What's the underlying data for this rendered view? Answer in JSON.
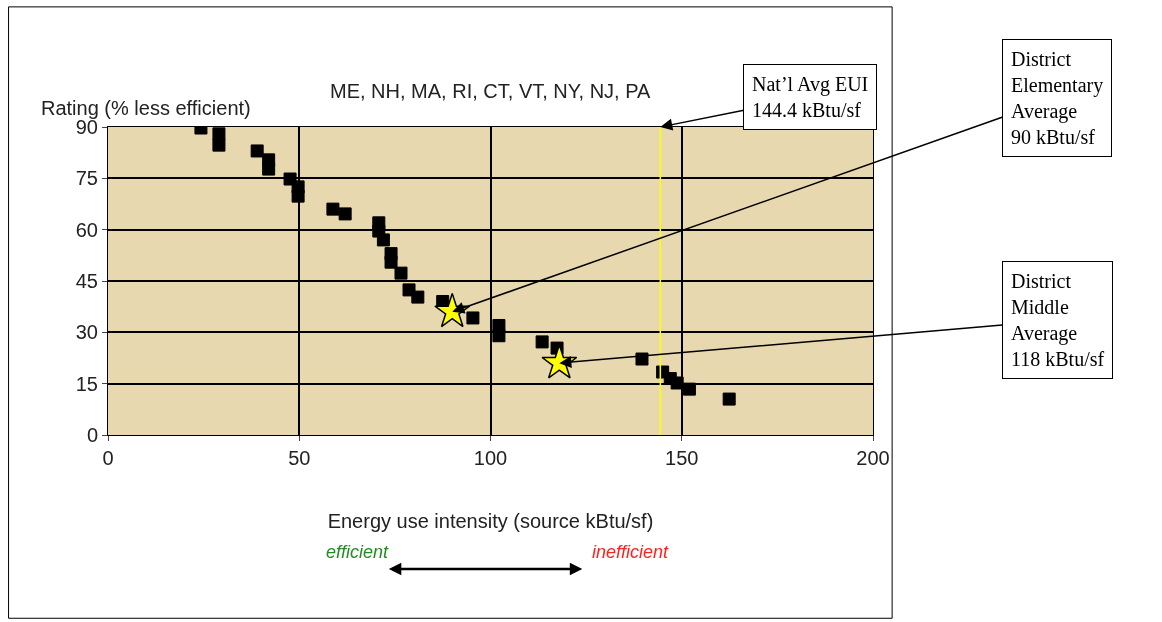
{
  "chart_data": {
    "type": "scatter",
    "title": "ME, NH, MA, RI, CT, VT, NY, NJ, PA",
    "ylabel": "Rating (% less efficient)",
    "xlabel": "Energy use intensity (source kBtu/sf)",
    "series": [
      {
        "color": "#000000",
        "marker": "square",
        "x": [
          24.3,
          29,
          29,
          39,
          42,
          42,
          47.6,
          49.7,
          49.7,
          58.8,
          62,
          70.8,
          70.8,
          72,
          74,
          74,
          76.6,
          78.7,
          81,
          87.5,
          95.4,
          102.2,
          102.2,
          113.5,
          117.4,
          139.6,
          145,
          147,
          148.8,
          152,
          162.4
        ],
        "values": [
          89.7,
          88,
          84.7,
          83,
          80.4,
          77.7,
          74.8,
          72.5,
          69.8,
          66,
          64.6,
          62,
          59.6,
          57,
          53,
          50.5,
          47.3,
          42.4,
          40.3,
          39,
          34.2,
          32,
          29,
          27.2,
          25.4,
          22.2,
          18.4,
          16.5,
          15.2,
          13.4,
          10.5
        ]
      },
      {
        "color": "#ffff00",
        "marker": "star",
        "x": [
          90,
          118
        ],
        "values": [
          36,
          21
        ]
      }
    ],
    "xlim": [
      0,
      200
    ],
    "xticks": [
      0,
      50,
      100,
      150,
      200
    ],
    "ylim": [
      0,
      90
    ],
    "yticks": [
      0,
      15,
      30,
      45,
      60,
      75,
      90
    ],
    "grid": true,
    "ref_lines": [
      {
        "axis": "x",
        "value": 144.4,
        "color": "#ffff00"
      }
    ],
    "annotations": [
      {
        "text": "Nat’l Avg EUI\n144.4 kBtu/sf",
        "x": 144.4,
        "y": 90
      },
      {
        "text": "District\nElementary\nAverage\n90 kBtu/sf",
        "x": 90,
        "y": 36
      },
      {
        "text": "District\nMiddle\nAverage\n118 kBtu/sf",
        "x": 118,
        "y": 21
      },
      "efficient",
      "inefficient"
    ]
  }
}
